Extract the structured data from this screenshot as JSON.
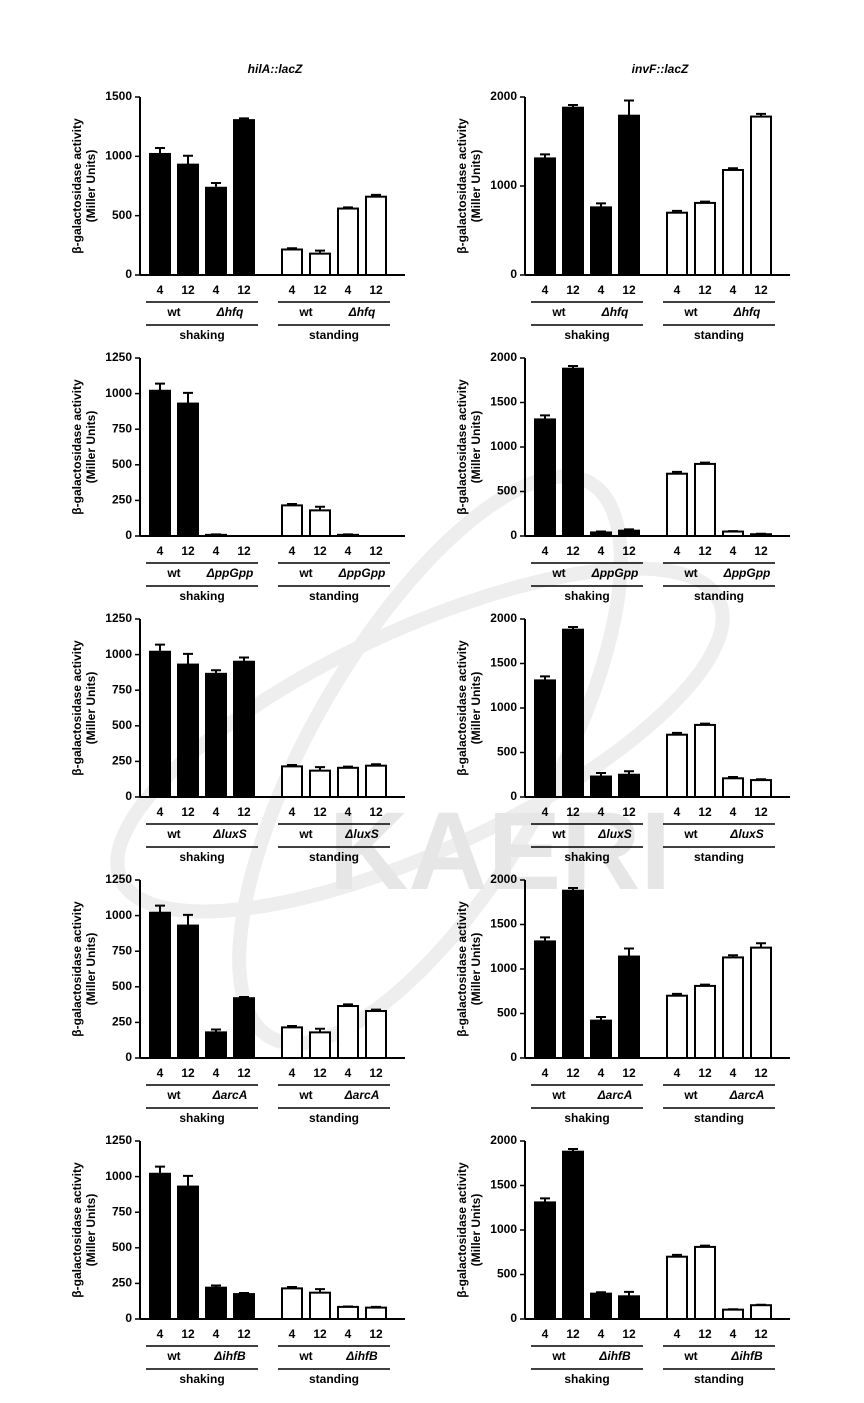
{
  "watermark": "KAERI",
  "chart_data": [
    {
      "type": "bar",
      "title": "hilA::lacZ",
      "ylabel": [
        "β-galactosidase activity",
        "(Miller Units)"
      ],
      "categories": [
        "4",
        "12",
        "4",
        "12",
        "4",
        "12",
        "4",
        "12"
      ],
      "groups": [
        "wt",
        "Δhfq",
        "wt",
        "Δhfq"
      ],
      "conditions": [
        "shaking",
        "standing"
      ],
      "condition_colors": [
        "#000000",
        "#ffffff"
      ],
      "values": [
        1020,
        930,
        735,
        1305,
        215,
        180,
        560,
        660
      ],
      "errors": [
        50,
        75,
        40,
        15,
        10,
        25,
        10,
        15
      ],
      "ylim": [
        0,
        1500
      ],
      "yticks": [
        0,
        500,
        1000,
        1500
      ]
    },
    {
      "type": "bar",
      "title": "invF::lacZ",
      "ylabel": [
        "β-galactosidase activity",
        "(Miller Units)"
      ],
      "categories": [
        "4",
        "12",
        "4",
        "12",
        "4",
        "12",
        "4",
        "12"
      ],
      "groups": [
        "wt",
        "Δhfq",
        "wt",
        "Δhfq"
      ],
      "conditions": [
        "shaking",
        "standing"
      ],
      "condition_colors": [
        "#000000",
        "#ffffff"
      ],
      "values": [
        1310,
        1880,
        760,
        1790,
        700,
        810,
        1180,
        1780
      ],
      "errors": [
        45,
        30,
        45,
        170,
        20,
        15,
        20,
        30
      ],
      "ylim": [
        0,
        2000
      ],
      "yticks": [
        0,
        1000,
        2000
      ]
    },
    {
      "type": "bar",
      "ylabel": [
        "β-galactosidase activity",
        "(Miller Units)"
      ],
      "categories": [
        "4",
        "12",
        "4",
        "12",
        "4",
        "12",
        "4",
        "12"
      ],
      "groups": [
        "wt",
        "ΔppGpp",
        "wt",
        "ΔppGpp"
      ],
      "conditions": [
        "shaking",
        "standing"
      ],
      "condition_colors": [
        "#000000",
        "#ffffff"
      ],
      "values": [
        1020,
        930,
        8,
        0,
        215,
        180,
        8,
        0
      ],
      "errors": [
        50,
        75,
        3,
        0,
        10,
        25,
        3,
        0
      ],
      "ylim": [
        0,
        1250
      ],
      "yticks": [
        0,
        250,
        500,
        750,
        1000,
        1250
      ]
    },
    {
      "type": "bar",
      "ylabel": [
        "β-galactosidase activity",
        "(Miller Units)"
      ],
      "categories": [
        "4",
        "12",
        "4",
        "12",
        "4",
        "12",
        "4",
        "12"
      ],
      "groups": [
        "wt",
        "ΔppGpp",
        "wt",
        "ΔppGpp"
      ],
      "conditions": [
        "shaking",
        "standing"
      ],
      "condition_colors": [
        "#000000",
        "#ffffff"
      ],
      "values": [
        1310,
        1880,
        40,
        60,
        700,
        810,
        50,
        20
      ],
      "errors": [
        45,
        30,
        10,
        15,
        20,
        15,
        5,
        5
      ],
      "ylim": [
        0,
        2000
      ],
      "yticks": [
        0,
        500,
        1000,
        1500,
        2000
      ]
    },
    {
      "type": "bar",
      "ylabel": [
        "β-galactosidase activity",
        "(Miller Units)"
      ],
      "categories": [
        "4",
        "12",
        "4",
        "12",
        "4",
        "12",
        "4",
        "12"
      ],
      "groups": [
        "wt",
        "ΔluxS",
        "wt",
        "ΔluxS"
      ],
      "conditions": [
        "shaking",
        "standing"
      ],
      "condition_colors": [
        "#000000",
        "#ffffff"
      ],
      "values": [
        1020,
        930,
        865,
        950,
        215,
        185,
        205,
        220
      ],
      "errors": [
        50,
        75,
        25,
        30,
        10,
        25,
        8,
        10
      ],
      "ylim": [
        0,
        1250
      ],
      "yticks": [
        0,
        250,
        500,
        750,
        1000,
        1250
      ]
    },
    {
      "type": "bar",
      "ylabel": [
        "β-galactosidase activity",
        "(Miller Units)"
      ],
      "categories": [
        "4",
        "12",
        "4",
        "12",
        "4",
        "12",
        "4",
        "12"
      ],
      "groups": [
        "wt",
        "ΔluxS",
        "wt",
        "ΔluxS"
      ],
      "conditions": [
        "shaking",
        "standing"
      ],
      "condition_colors": [
        "#000000",
        "#ffffff"
      ],
      "values": [
        1310,
        1880,
        230,
        250,
        700,
        810,
        210,
        190
      ],
      "errors": [
        45,
        30,
        40,
        40,
        20,
        15,
        15,
        10
      ],
      "ylim": [
        0,
        2000
      ],
      "yticks": [
        0,
        500,
        1000,
        1500,
        2000
      ]
    },
    {
      "type": "bar",
      "ylabel": [
        "β-galactosidase activity",
        "(Miller Units)"
      ],
      "categories": [
        "4",
        "12",
        "4",
        "12",
        "4",
        "12",
        "4",
        "12"
      ],
      "groups": [
        "wt",
        "ΔarcA",
        "wt",
        "ΔarcA"
      ],
      "conditions": [
        "shaking",
        "standing"
      ],
      "condition_colors": [
        "#000000",
        "#ffffff"
      ],
      "values": [
        1020,
        930,
        180,
        420,
        215,
        180,
        365,
        330
      ],
      "errors": [
        50,
        75,
        20,
        8,
        10,
        25,
        12,
        10
      ],
      "ylim": [
        0,
        1250
      ],
      "yticks": [
        0,
        250,
        500,
        750,
        1000,
        1250
      ]
    },
    {
      "type": "bar",
      "ylabel": [
        "β-galactosidase activity",
        "(Miller Units)"
      ],
      "categories": [
        "4",
        "12",
        "4",
        "12",
        "4",
        "12",
        "4",
        "12"
      ],
      "groups": [
        "wt",
        "ΔarcA",
        "wt",
        "ΔarcA"
      ],
      "conditions": [
        "shaking",
        "standing"
      ],
      "condition_colors": [
        "#000000",
        "#ffffff"
      ],
      "values": [
        1310,
        1880,
        420,
        1140,
        700,
        810,
        1130,
        1240
      ],
      "errors": [
        45,
        30,
        40,
        90,
        20,
        15,
        25,
        50
      ],
      "ylim": [
        0,
        2000
      ],
      "yticks": [
        0,
        500,
        1000,
        1500,
        2000
      ]
    },
    {
      "type": "bar",
      "ylabel": [
        "β-galactosidase activity",
        "(Miller Units)"
      ],
      "categories": [
        "4",
        "12",
        "4",
        "12",
        "4",
        "12",
        "4",
        "12"
      ],
      "groups": [
        "wt",
        "ΔihfB",
        "wt",
        "ΔihfB"
      ],
      "conditions": [
        "shaking",
        "standing"
      ],
      "condition_colors": [
        "#000000",
        "#ffffff"
      ],
      "values": [
        1020,
        930,
        220,
        175,
        215,
        185,
        85,
        80
      ],
      "errors": [
        50,
        75,
        15,
        8,
        10,
        25,
        3,
        5
      ],
      "ylim": [
        0,
        1250
      ],
      "yticks": [
        0,
        250,
        500,
        750,
        1000,
        1250
      ]
    },
    {
      "type": "bar",
      "ylabel": [
        "β-galactosidase activity",
        "(Miller Units)"
      ],
      "categories": [
        "4",
        "12",
        "4",
        "12",
        "4",
        "12",
        "4",
        "12"
      ],
      "groups": [
        "wt",
        "ΔihfB",
        "wt",
        "ΔihfB"
      ],
      "conditions": [
        "shaking",
        "standing"
      ],
      "condition_colors": [
        "#000000",
        "#ffffff"
      ],
      "values": [
        1310,
        1880,
        285,
        255,
        700,
        810,
        105,
        155
      ],
      "errors": [
        45,
        30,
        15,
        50,
        20,
        15,
        5,
        5
      ],
      "ylim": [
        0,
        2000
      ],
      "yticks": [
        0,
        500,
        1000,
        1500,
        2000
      ]
    }
  ]
}
